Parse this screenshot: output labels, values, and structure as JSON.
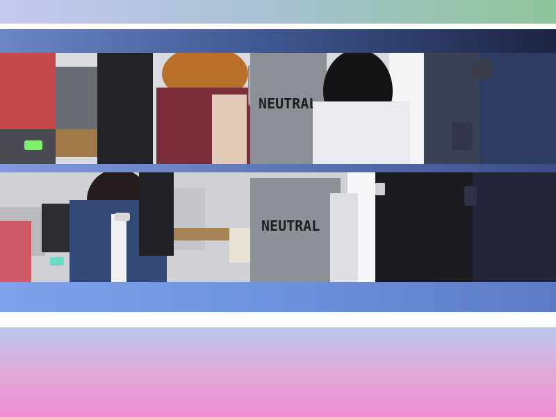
{
  "photo_top": {
    "shirt_text": "NEUTRAL"
  },
  "photo_bottom": {
    "shirt_text": "NEUTRAL"
  },
  "colors": {
    "top_strip": [
      "#c7c9ee",
      "#8fc49a"
    ],
    "frame_top": [
      "#6b86c6",
      "#1d2342"
    ],
    "frame_bottom": [
      "#7ea2ea",
      "#5c7bc4"
    ],
    "bottom_strip": [
      "#b9c9ee",
      "#ee8fd0"
    ]
  }
}
